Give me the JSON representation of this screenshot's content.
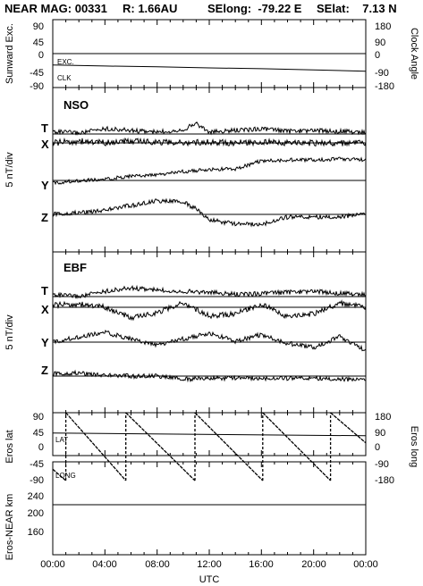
{
  "header": {
    "mission": "NEAR MAG: 00331",
    "radius": "R: 1.66AU",
    "selong": "SElong:  -79.22 E",
    "selat": "SElat:    7.13 N"
  },
  "xaxis": {
    "label": "UTC",
    "ticks": [
      "00:00",
      "04:00",
      "08:00",
      "12:00",
      "16:00",
      "20:00",
      "00:00"
    ],
    "range_hours": [
      0,
      24
    ]
  },
  "panels": {
    "exc": {
      "left_label": "Sunward Exc.",
      "right_label": "Clock Angle",
      "left_ticks": [
        "90",
        "45",
        "0",
        "-45",
        "-90"
      ],
      "right_ticks": [
        "180",
        "90",
        "0",
        "-90",
        "-180"
      ],
      "series_labels": [
        "EXC.",
        "CLK"
      ]
    },
    "nso": {
      "title": "NSO",
      "ylabel": "5 nT/div",
      "components": [
        "T",
        "X",
        "Y",
        "Z"
      ]
    },
    "ebf": {
      "title": "EBF",
      "ylabel": "5 nT/div",
      "components": [
        "T",
        "X",
        "Y",
        "Z"
      ]
    },
    "eros": {
      "left_label": "Eros lat",
      "right_label": "Eros long",
      "left_ticks": [
        "90",
        "45",
        "0",
        "-45",
        "-90"
      ],
      "right_ticks": [
        "180",
        "90",
        "0",
        "-90",
        "-180"
      ],
      "series_labels": [
        "LAT",
        "LONG"
      ]
    },
    "dist": {
      "left_label": "Eros-NEAR km",
      "left_ticks": [
        "240",
        "200",
        "160"
      ]
    }
  },
  "chart_data": [
    {
      "type": "line",
      "panel": "Sunward Exc. / Clock Angle",
      "xlabel": "UTC",
      "ylabel": "Sunward Exc.",
      "y2label": "Clock Angle",
      "ylim": [
        -90,
        90
      ],
      "y2lim": [
        -180,
        180
      ],
      "series": [
        {
          "name": "EXC.",
          "x": [
            0,
            24
          ],
          "values": [
            0,
            0
          ]
        },
        {
          "name": "CLK",
          "x": [
            0,
            4,
            8,
            12,
            16,
            20,
            24
          ],
          "values": [
            -30,
            -33,
            -35,
            -38,
            -40,
            -43,
            -47
          ]
        }
      ]
    },
    {
      "type": "line",
      "panel": "NSO",
      "xlabel": "UTC",
      "ylabel": "5 nT/div",
      "series": [
        {
          "name": "T",
          "x": [
            0,
            2,
            4,
            6,
            8,
            10,
            11,
            12,
            14,
            16,
            18,
            20,
            22,
            24
          ],
          "values": [
            0.3,
            0.1,
            0.6,
            0.4,
            0.2,
            0.5,
            1.2,
            0.2,
            0.4,
            0.6,
            0.3,
            0.4,
            0.3,
            0.2
          ]
        },
        {
          "name": "X",
          "x": [
            0,
            2,
            4,
            6,
            8,
            10,
            12,
            14,
            16,
            18,
            20,
            22,
            24
          ],
          "values": [
            0.0,
            0.2,
            0.0,
            0.2,
            0.1,
            0.0,
            0.1,
            0.0,
            0.1,
            0.0,
            0.0,
            0.0,
            0.0
          ]
        },
        {
          "name": "Y",
          "x": [
            0,
            2,
            4,
            6,
            8,
            10,
            12,
            14,
            16,
            18,
            20,
            22,
            24
          ],
          "values": [
            -0.3,
            0.0,
            0.1,
            0.5,
            0.6,
            1.0,
            1.2,
            1.3,
            2.2,
            2.3,
            2.3,
            2.4,
            2.3
          ]
        },
        {
          "name": "Z",
          "x": [
            0,
            2,
            4,
            6,
            8,
            10,
            11,
            12,
            14,
            16,
            18,
            20,
            22,
            24
          ],
          "values": [
            0.0,
            0.2,
            0.5,
            1.0,
            1.5,
            1.4,
            0.6,
            -0.6,
            -1.1,
            -1.1,
            -0.3,
            -0.3,
            -0.3,
            0.0
          ]
        }
      ]
    },
    {
      "type": "line",
      "panel": "EBF",
      "xlabel": "UTC",
      "ylabel": "5 nT/div",
      "series": [
        {
          "name": "T",
          "x": [
            0,
            2,
            4,
            6,
            8,
            10,
            12,
            14,
            16,
            18,
            20,
            22,
            24
          ],
          "values": [
            0.2,
            0.0,
            0.5,
            0.8,
            0.6,
            0.5,
            0.4,
            0.2,
            0.3,
            0.4,
            0.5,
            0.3,
            0.2
          ]
        },
        {
          "name": "X",
          "x": [
            0,
            2,
            4,
            6,
            8,
            10,
            12,
            14,
            16,
            18,
            20,
            22,
            24
          ],
          "values": [
            0.2,
            0.3,
            0.0,
            -1.0,
            -0.5,
            0.4,
            -0.8,
            -0.6,
            0.3,
            -0.9,
            -0.6,
            0.4,
            0.0
          ]
        },
        {
          "name": "Y",
          "x": [
            0,
            2,
            4,
            6,
            8,
            10,
            12,
            14,
            16,
            18,
            20,
            22,
            24
          ],
          "values": [
            0.0,
            0.5,
            0.9,
            0.3,
            -0.3,
            0.3,
            0.8,
            0.1,
            0.7,
            -0.1,
            -0.5,
            0.5,
            -0.8
          ]
        },
        {
          "name": "Z",
          "x": [
            0,
            2,
            4,
            6,
            8,
            10,
            12,
            14,
            16,
            18,
            20,
            22,
            24
          ],
          "values": [
            0.2,
            0.3,
            0.1,
            0.0,
            0.0,
            -0.3,
            -0.2,
            -0.2,
            -0.2,
            -0.2,
            -0.2,
            -0.3,
            -0.4
          ]
        }
      ]
    },
    {
      "type": "line",
      "panel": "Eros lat / Eros long",
      "xlabel": "UTC",
      "ylabel": "Eros lat",
      "y2label": "Eros long",
      "ylim": [
        -90,
        90
      ],
      "y2lim": [
        -180,
        180
      ],
      "series": [
        {
          "name": "LAT",
          "x": [
            0,
            24
          ],
          "values": [
            36,
            29
          ]
        },
        {
          "name": "LONG",
          "x": [
            0,
            1,
            1,
            5.6,
            5.6,
            10.9,
            10.9,
            16.1,
            16.1,
            21.3,
            21.3,
            24
          ],
          "values": [
            -120,
            -180,
            180,
            -180,
            180,
            -180,
            180,
            -180,
            180,
            -180,
            180,
            20
          ]
        }
      ]
    },
    {
      "type": "line",
      "panel": "Eros-NEAR km",
      "xlabel": "UTC",
      "ylabel": "Eros-NEAR km",
      "ylim": [
        130,
        260
      ],
      "series": [
        {
          "name": "",
          "x": [
            0,
            24
          ],
          "values": [
            200,
            200
          ]
        }
      ]
    }
  ]
}
